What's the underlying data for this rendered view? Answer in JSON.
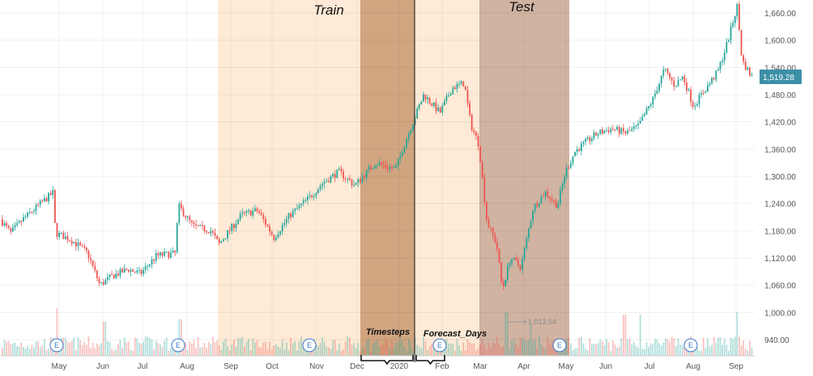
{
  "chart_data": {
    "type": "candlestick",
    "x_tick_labels": [
      "May",
      "Jun",
      "Jul",
      "Aug",
      "Sep",
      "Oct",
      "Nov",
      "Dec",
      "2020",
      "Feb",
      "Mar",
      "Apr",
      "May",
      "Jun",
      "Jul",
      "Aug",
      "Sep"
    ],
    "y_tick_labels": [
      "1,660.00",
      "1,600.00",
      "1,540.00",
      "1,480.00",
      "1,420.00",
      "1,360.00",
      "1,300.00",
      "1,240.00",
      "1,180.00",
      "1,120.00",
      "1,060.00",
      "1,000.00",
      "940.00"
    ],
    "ylim": [
      920,
      1680
    ],
    "grid": true,
    "price_anchors": [
      [
        0,
        1210
      ],
      [
        15,
        1175
      ],
      [
        30,
        1205
      ],
      [
        52,
        1240
      ],
      [
        68,
        1265
      ],
      [
        70,
        1175
      ],
      [
        90,
        1160
      ],
      [
        110,
        1130
      ],
      [
        125,
        1060
      ],
      [
        140,
        1080
      ],
      [
        160,
        1095
      ],
      [
        175,
        1085
      ],
      [
        195,
        1125
      ],
      [
        218,
        1130
      ],
      [
        222,
        1235
      ],
      [
        240,
        1190
      ],
      [
        262,
        1180
      ],
      [
        272,
        1150
      ],
      [
        300,
        1215
      ],
      [
        320,
        1225
      ],
      [
        340,
        1165
      ],
      [
        360,
        1215
      ],
      [
        385,
        1255
      ],
      [
        400,
        1285
      ],
      [
        420,
        1310
      ],
      [
        440,
        1280
      ],
      [
        465,
        1330
      ],
      [
        490,
        1315
      ],
      [
        505,
        1390
      ],
      [
        525,
        1480
      ],
      [
        545,
        1440
      ],
      [
        560,
        1495
      ],
      [
        575,
        1505
      ],
      [
        583,
        1415
      ],
      [
        593,
        1370
      ],
      [
        603,
        1200
      ],
      [
        615,
        1150
      ],
      [
        622,
        1050
      ],
      [
        632,
        1120
      ],
      [
        645,
        1100
      ],
      [
        660,
        1230
      ],
      [
        675,
        1265
      ],
      [
        690,
        1235
      ],
      [
        700,
        1310
      ],
      [
        712,
        1355
      ],
      [
        725,
        1375
      ],
      [
        740,
        1395
      ],
      [
        758,
        1405
      ],
      [
        775,
        1395
      ],
      [
        790,
        1410
      ],
      [
        808,
        1470
      ],
      [
        822,
        1535
      ],
      [
        835,
        1500
      ],
      [
        845,
        1520
      ],
      [
        858,
        1455
      ],
      [
        872,
        1490
      ],
      [
        888,
        1530
      ],
      [
        900,
        1595
      ],
      [
        912,
        1675
      ],
      [
        918,
        1555
      ],
      [
        930,
        1519
      ]
    ],
    "volume_spikes": [
      [
        70,
        1010
      ],
      [
        128,
        980
      ],
      [
        222,
        985
      ],
      [
        625,
        1000
      ],
      [
        655,
        975
      ],
      [
        770,
        995
      ],
      [
        790,
        995
      ],
      [
        910,
        1000
      ]
    ],
    "earnings_markers": [
      "E",
      "E",
      "E",
      "E",
      "E",
      "E"
    ],
    "last_price": "1,519.28",
    "low_marker": "1,013.54",
    "regions": [
      {
        "name": "Train",
        "label": "Train",
        "color": "#fde3c8"
      },
      {
        "name": "Timesteps",
        "label": "Timesteps",
        "color": "#c8956a"
      },
      {
        "name": "Forecast",
        "label": "",
        "color": "#fde3c8"
      },
      {
        "name": "Test",
        "label": "Test",
        "color": "#c9a690"
      }
    ],
    "annotations": [
      "Timesteps",
      "Forecast_Days"
    ],
    "colors": {
      "up": "#26a69a",
      "down": "#ef5350",
      "price_tag": "#3c8fa6",
      "earnings": "#3a78c8"
    }
  }
}
